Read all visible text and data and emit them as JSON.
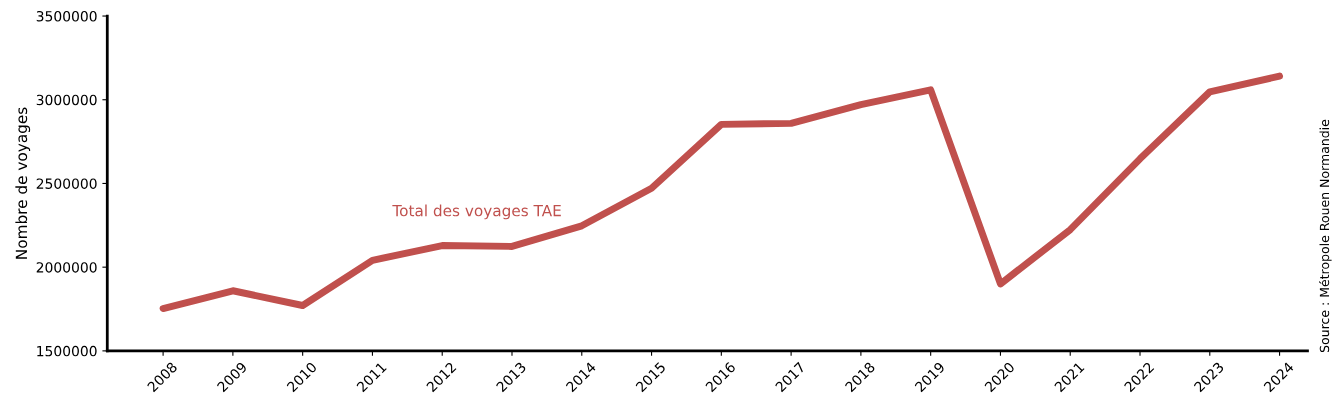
{
  "chart_data": {
    "type": "line",
    "ylabel": "Nombre de voyages",
    "categories": [
      "2008",
      "2009",
      "2010",
      "2011",
      "2012",
      "2013",
      "2014",
      "2015",
      "2016",
      "2017",
      "2018",
      "2019",
      "2020",
      "2021",
      "2022",
      "2023",
      "2024"
    ],
    "series": [
      {
        "name": "Total des voyages TAE",
        "color": "#c0504d",
        "values": [
          1753000,
          1859000,
          1771000,
          2041000,
          2129000,
          2124000,
          2247000,
          2471000,
          2853000,
          2859000,
          2971000,
          3059000,
          1900000,
          2224000,
          2647000,
          3047000,
          3141000
        ]
      }
    ],
    "ylim": [
      1500000,
      3500000
    ],
    "yticks": [
      1500000,
      2000000,
      2500000,
      3000000,
      3500000
    ],
    "grid": false,
    "legend": false,
    "marker": "none",
    "line_style": "solid",
    "annotations": [
      "Source : Métropole Rouen Normandie"
    ]
  }
}
